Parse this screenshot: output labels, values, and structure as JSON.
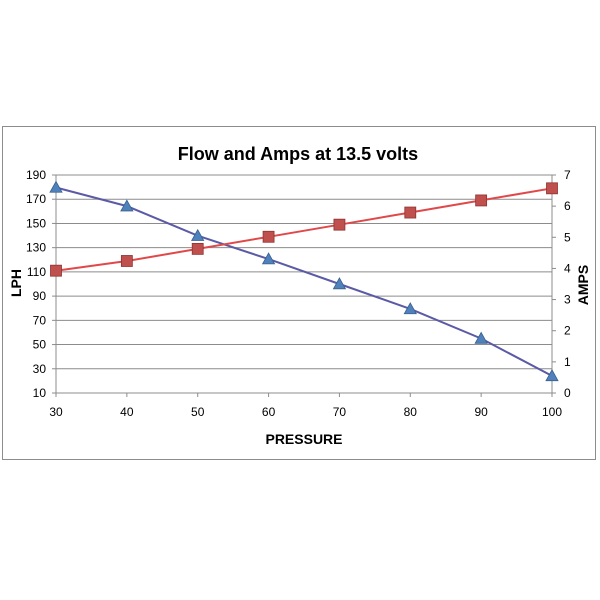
{
  "chart_data": {
    "type": "line",
    "title": "Flow and Amps at 13.5 volts",
    "xlabel": "PRESSURE",
    "ylabel": "LPH",
    "y2label": "AMPS",
    "x": [
      30,
      40,
      50,
      60,
      70,
      80,
      90,
      100
    ],
    "xlim": [
      30,
      100
    ],
    "x_ticks": [
      "30",
      "40",
      "50",
      "60",
      "70",
      "80",
      "90",
      "100"
    ],
    "ylim": [
      10,
      190
    ],
    "y_ticks": [
      "10",
      "30",
      "50",
      "70",
      "90",
      "110",
      "130",
      "150",
      "170",
      "190"
    ],
    "y2lim": [
      0,
      7
    ],
    "y2_ticks": [
      "0",
      "1",
      "2",
      "3",
      "4",
      "5",
      "6",
      "7"
    ],
    "grid": true,
    "legend": "none",
    "series": [
      {
        "axis": "right",
        "marker": "triangle",
        "color": "#4f81bd",
        "line_color": "#5b5aa6",
        "values": [
          6.6,
          6.0,
          5.05,
          4.3,
          3.5,
          2.7,
          1.75,
          0.55
        ]
      },
      {
        "axis": "left",
        "marker": "square",
        "color": "#c0504d",
        "line_color": "#e0484a",
        "values": [
          111,
          119,
          129,
          139,
          149,
          159,
          169,
          179
        ]
      }
    ]
  }
}
